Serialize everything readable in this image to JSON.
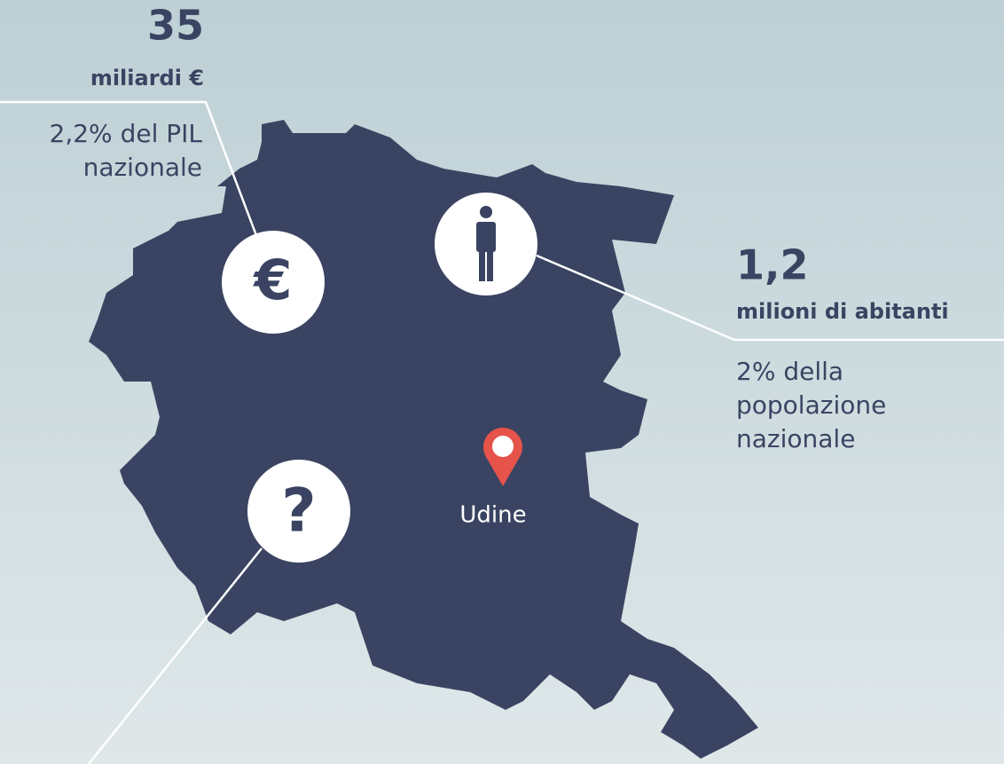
{
  "stats": [
    {
      "value": "35",
      "unit": "miliardi €",
      "note_lines": [
        "2,2% del PIL",
        "nazionale"
      ]
    },
    {
      "value": "1,2",
      "unit": "milioni di abitanti",
      "note_lines": [
        "2% della",
        "popolazione",
        "nazionale"
      ]
    }
  ],
  "city": "Udine",
  "icons": [
    "€",
    "?"
  ]
}
